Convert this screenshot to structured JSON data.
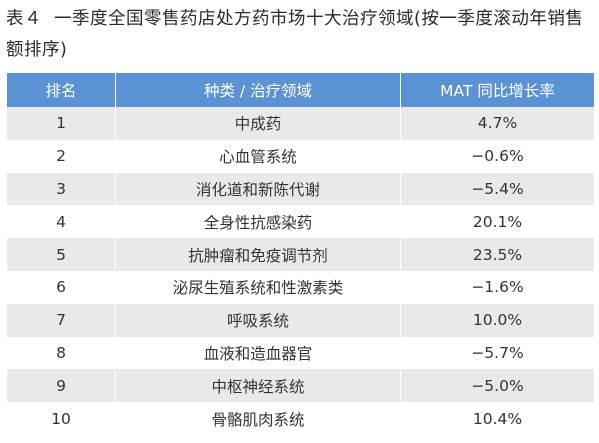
{
  "title": {
    "label": "表４",
    "text": "一季度全国零售药店处方药市场十大治疗领域(按一季度滚动年销售额排序)"
  },
  "table": {
    "headers": [
      "排名",
      "种类 / 治疗领域",
      "MAT 同比增长率"
    ],
    "rows": [
      [
        "1",
        "中成药",
        "4.7%"
      ],
      [
        "2",
        "心血管系统",
        "−0.6%"
      ],
      [
        "3",
        "消化道和新陈代谢",
        "−5.4%"
      ],
      [
        "4",
        "全身性抗感染药",
        "20.1%"
      ],
      [
        "5",
        "抗肿瘤和免疫调节剂",
        "23.5%"
      ],
      [
        "6",
        "泌尿生殖系统和性激素类",
        "−1.6%"
      ],
      [
        "7",
        "呼吸系统",
        "10.0%"
      ],
      [
        "8",
        "血液和造血器官",
        "−5.7%"
      ],
      [
        "9",
        "中枢神经系统",
        "−5.0%"
      ],
      [
        "10",
        "骨骼肌肉系统",
        "10.4%"
      ]
    ]
  }
}
